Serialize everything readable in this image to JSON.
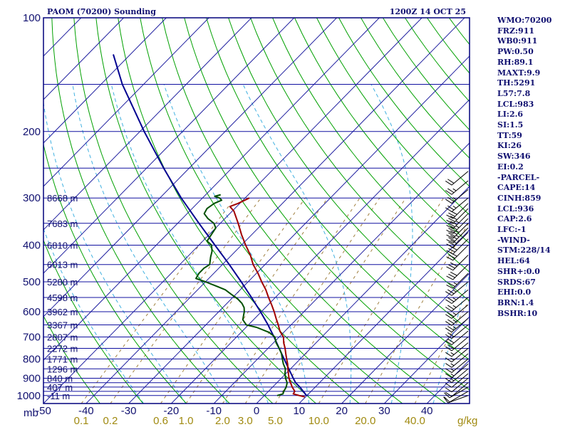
{
  "header": {
    "title": "PAOM (70200) Sounding",
    "time": "1200Z 14 OCT 25"
  },
  "indices": [
    "WMO:70200",
    "FRZ:911",
    "WB0:911",
    "PW:0.50",
    "RH:89.1",
    "MAXT:9.9",
    "TH:5291",
    "L57:7.8",
    "LCL:983",
    "LI:2.6",
    "SI:1.5",
    "TT:59",
    "KI:26",
    "SW:346",
    "EI:0.2",
    "-PARCEL-",
    "CAPE:14",
    "CINH:859",
    "LCL:936",
    "CAP:2.6",
    "LFC:-1",
    "-WIND-",
    "STM:228/14",
    "HEL:64",
    "SHR+:0.0",
    "SRDS:67",
    "EHI:0.0",
    "BRN:1.4",
    "BSHR:10"
  ],
  "chart_data": {
    "type": "skew-t log-p sounding",
    "pressure_axis": {
      "unit_label": "mb",
      "ticks": [
        {
          "p": 100,
          "label": "100"
        },
        {
          "p": 200,
          "label": "200"
        },
        {
          "p": 300,
          "label": "300"
        },
        {
          "p": 400,
          "label": "400"
        },
        {
          "p": 500,
          "label": "500"
        },
        {
          "p": 600,
          "label": "600"
        },
        {
          "p": 700,
          "label": "700"
        },
        {
          "p": 800,
          "label": "800"
        },
        {
          "p": 900,
          "label": "900"
        },
        {
          "p": 1000,
          "label": "1000"
        }
      ],
      "range": [
        100,
        1050
      ]
    },
    "isobars": [
      100,
      150,
      200,
      250,
      300,
      350,
      400,
      450,
      500,
      550,
      600,
      650,
      700,
      750,
      800,
      850,
      900,
      925,
      950,
      975,
      1000
    ],
    "temperature_axis": {
      "ticks": [
        {
          "t": -50,
          "label": "-50"
        },
        {
          "t": -40,
          "label": "-40"
        },
        {
          "t": -30,
          "label": "-30"
        },
        {
          "t": -20,
          "label": "-20"
        },
        {
          "t": -10,
          "label": "-10"
        },
        {
          "t": 0,
          "label": "0"
        },
        {
          "t": 10,
          "label": "10"
        },
        {
          "t": 20,
          "label": "20"
        },
        {
          "t": 30,
          "label": "30"
        },
        {
          "t": 40,
          "label": "40"
        }
      ],
      "range_at_1050mb": [
        -50,
        50
      ]
    },
    "mixing_ratio": {
      "unit_label": "g/kg",
      "ticks": [
        {
          "w": 0.1,
          "label": "0.1"
        },
        {
          "w": 0.2,
          "label": "0.2"
        },
        {
          "w": 0.6,
          "label": "0.6"
        },
        {
          "w": 1.0,
          "label": "1.0"
        },
        {
          "w": 2.0,
          "label": "2.0"
        },
        {
          "w": 3.0,
          "label": "3.0"
        },
        {
          "w": 5.0,
          "label": "5.0"
        },
        {
          "w": 10.0,
          "label": "10.0"
        },
        {
          "w": 20.0,
          "label": "20.0"
        },
        {
          "w": 40.0,
          "label": "40.0"
        }
      ]
    },
    "heights": [
      {
        "p": 300,
        "label": "8668 m"
      },
      {
        "p": 350,
        "label": "7683 m"
      },
      {
        "p": 400,
        "label": "6810 m"
      },
      {
        "p": 450,
        "label": "6013 m"
      },
      {
        "p": 500,
        "label": "5280 m"
      },
      {
        "p": 550,
        "label": "4598 m"
      },
      {
        "p": 600,
        "label": "3962 m"
      },
      {
        "p": 650,
        "label": "3367 m"
      },
      {
        "p": 700,
        "label": "2807 m"
      },
      {
        "p": 750,
        "label": "2272 m"
      },
      {
        "p": 800,
        "label": "1771 m"
      },
      {
        "p": 850,
        "label": "1296 m"
      },
      {
        "p": 900,
        "label": "840 m"
      },
      {
        "p": 950,
        "label": "407 m"
      },
      {
        "p": 1000,
        "label": "-11 m"
      }
    ],
    "temperature": [
      [
        1008,
        9.8
      ],
      [
        1000,
        8.2
      ],
      [
        990,
        6.4
      ],
      [
        975,
        6.2
      ],
      [
        950,
        4.6
      ],
      [
        925,
        3.2
      ],
      [
        900,
        1.8
      ],
      [
        875,
        0.6
      ],
      [
        850,
        -0.6
      ],
      [
        825,
        -1.8
      ],
      [
        800,
        -3.2
      ],
      [
        775,
        -4.6
      ],
      [
        750,
        -6.0
      ],
      [
        725,
        -7.6
      ],
      [
        700,
        -9.0
      ],
      [
        675,
        -11.2
      ],
      [
        650,
        -13.0
      ],
      [
        625,
        -15.0
      ],
      [
        600,
        -17.0
      ],
      [
        575,
        -19.2
      ],
      [
        550,
        -21.6
      ],
      [
        525,
        -24.0
      ],
      [
        500,
        -26.8
      ],
      [
        475,
        -29.6
      ],
      [
        450,
        -32.8
      ],
      [
        425,
        -35.6
      ],
      [
        400,
        -39.0
      ],
      [
        375,
        -42.4
      ],
      [
        350,
        -45.8
      ],
      [
        325,
        -49.6
      ],
      [
        316,
        -51.6
      ],
      [
        310,
        -50.4
      ],
      [
        300,
        -49.0
      ]
    ],
    "dewpoint": [
      [
        1000,
        3.0
      ],
      [
        990,
        4.0
      ],
      [
        975,
        3.6
      ],
      [
        950,
        3.2
      ],
      [
        925,
        2.4
      ],
      [
        900,
        1.0
      ],
      [
        875,
        -0.2
      ],
      [
        850,
        -1.2
      ],
      [
        825,
        -2.8
      ],
      [
        800,
        -4.2
      ],
      [
        775,
        -5.6
      ],
      [
        750,
        -7.4
      ],
      [
        725,
        -9.4
      ],
      [
        700,
        -11.0
      ],
      [
        680,
        -13.5
      ],
      [
        660,
        -17.5
      ],
      [
        650,
        -20.5
      ],
      [
        630,
        -22.5
      ],
      [
        610,
        -23.5
      ],
      [
        600,
        -24.0
      ],
      [
        585,
        -25.0
      ],
      [
        570,
        -26.5
      ],
      [
        555,
        -28.5
      ],
      [
        540,
        -31.0
      ],
      [
        525,
        -33.5
      ],
      [
        515,
        -36.0
      ],
      [
        500,
        -40.0
      ],
      [
        490,
        -43.0
      ],
      [
        475,
        -43.5
      ],
      [
        460,
        -43.5
      ],
      [
        450,
        -43.0
      ],
      [
        430,
        -44.5
      ],
      [
        415,
        -45.5
      ],
      [
        400,
        -47.0
      ],
      [
        390,
        -49.0
      ],
      [
        375,
        -49.5
      ],
      [
        360,
        -50.0
      ],
      [
        350,
        -51.5
      ],
      [
        340,
        -54.0
      ],
      [
        330,
        -56.0
      ],
      [
        320,
        -56.5
      ],
      [
        310,
        -56.0
      ],
      [
        304,
        -55.0
      ],
      [
        300,
        -56.0
      ],
      [
        297,
        -57.5
      ],
      [
        294,
        -56.5
      ]
    ],
    "parcel": [
      [
        1000,
        9.9
      ],
      [
        950,
        6.4
      ],
      [
        925,
        4.4
      ],
      [
        900,
        2.8
      ],
      [
        850,
        -0.4
      ],
      [
        800,
        -3.8
      ],
      [
        750,
        -7.4
      ],
      [
        700,
        -11.2
      ],
      [
        650,
        -15.4
      ],
      [
        600,
        -20.2
      ],
      [
        550,
        -25.6
      ],
      [
        500,
        -31.6
      ],
      [
        450,
        -38.4
      ],
      [
        400,
        -46.2
      ],
      [
        350,
        -55.0
      ],
      [
        300,
        -65.0
      ],
      [
        250,
        -76.0
      ],
      [
        200,
        -89.0
      ],
      [
        150,
        -105.0
      ],
      [
        125,
        -114.0
      ]
    ],
    "wind_barbs": [
      [
        1000,
        250,
        12
      ],
      [
        975,
        240,
        10
      ],
      [
        950,
        240,
        10
      ],
      [
        925,
        230,
        10
      ],
      [
        900,
        230,
        10
      ],
      [
        875,
        230,
        10
      ],
      [
        850,
        230,
        15
      ],
      [
        825,
        230,
        15
      ],
      [
        800,
        230,
        15
      ],
      [
        775,
        230,
        15
      ],
      [
        750,
        230,
        15
      ],
      [
        725,
        230,
        15
      ],
      [
        700,
        230,
        20
      ],
      [
        675,
        230,
        20
      ],
      [
        650,
        230,
        20
      ],
      [
        625,
        230,
        25
      ],
      [
        600,
        230,
        25
      ],
      [
        575,
        230,
        25
      ],
      [
        550,
        230,
        25
      ],
      [
        525,
        230,
        25
      ],
      [
        500,
        230,
        25
      ],
      [
        475,
        225,
        25
      ],
      [
        450,
        225,
        30
      ],
      [
        425,
        225,
        30
      ],
      [
        400,
        225,
        30
      ],
      [
        385,
        225,
        30
      ],
      [
        370,
        225,
        30
      ],
      [
        360,
        225,
        35
      ],
      [
        350,
        225,
        35
      ],
      [
        340,
        225,
        35
      ],
      [
        330,
        225,
        35
      ],
      [
        320,
        225,
        30
      ],
      [
        310,
        225,
        30
      ],
      [
        300,
        230,
        25
      ],
      [
        285,
        230,
        25
      ],
      [
        270,
        230,
        25
      ],
      [
        255,
        230,
        20
      ]
    ],
    "colors": {
      "frame": "#00007c",
      "isobar": "#1010a0",
      "isotherm": "#2020a0",
      "dry_adiabat": "#00a000",
      "moist_adiabat": "#40b0e0",
      "mixing_ratio_line": "#a08040",
      "temperature": "#a00000",
      "dewpoint": "#005000",
      "parcel": "#000090",
      "mixing_labels": "#a08a10"
    }
  }
}
